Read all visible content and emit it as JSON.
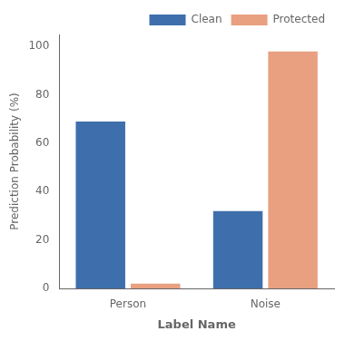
{
  "chart_data": {
    "type": "bar",
    "categories": [
      "Person",
      "Noise"
    ],
    "series": [
      {
        "name": "Clean",
        "color": "#3e6fac",
        "values": [
          69,
          32
        ]
      },
      {
        "name": "Protected",
        "color": "#e8a080",
        "values": [
          2,
          98
        ]
      }
    ],
    "xlabel": "Label Name",
    "ylabel": "Prediction Probability (%)",
    "ylim": [
      0,
      105
    ],
    "yticks": [
      0,
      20,
      40,
      60,
      80,
      100
    ],
    "legend": "upper right",
    "grid": false
  }
}
